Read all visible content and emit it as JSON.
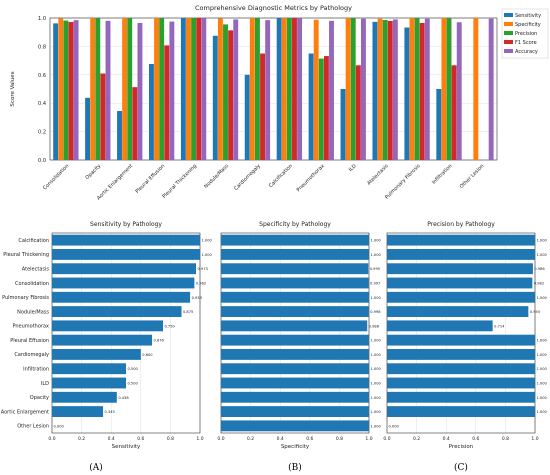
{
  "colors": {
    "sensitivity": "#1f77b4",
    "specificity": "#ff7f0e",
    "precision": "#2ca02c",
    "f1": "#d62728",
    "accuracy": "#9467bd",
    "grid": "#dddddd",
    "axis": "#333333"
  },
  "panel_letters": [
    "(A)",
    "(B)",
    "(C)"
  ],
  "chart_data": [
    {
      "type": "bar",
      "title": "Comprehensive Diagnostic Metrics by Pathology",
      "xlabel": "",
      "ylabel": "Score Values",
      "ylim": [
        0,
        1.0
      ],
      "yticks": [
        "0.0",
        "0.2",
        "0.4",
        "0.6",
        "0.8",
        "1.0"
      ],
      "grid": true,
      "legend_position": "top-right",
      "categories": [
        "Consolidation",
        "Opacity",
        "Aortic Enlargement",
        "Pleural Effusion",
        "Pleural Thickening",
        "Nodule/Mass",
        "Cardiomegaly",
        "Calcification",
        "Pneumothorax",
        "ILD",
        "Atelectasis",
        "Pulmonary Fibrosis",
        "Infiltration",
        "Other Lesion"
      ],
      "series": [
        {
          "name": "Sensitivity",
          "color_key": "sensitivity",
          "values": [
            0.962,
            0.438,
            0.345,
            0.676,
            1.0,
            0.875,
            0.6,
            1.0,
            0.75,
            0.5,
            0.973,
            0.933,
            0.5,
            0.0
          ]
        },
        {
          "name": "Specificity",
          "color_key": "specificity",
          "values": [
            0.997,
            1.0,
            1.0,
            1.0,
            1.0,
            0.998,
            1.0,
            1.0,
            0.988,
            1.0,
            0.995,
            1.0,
            1.0,
            1.0
          ]
        },
        {
          "name": "Precision",
          "color_key": "precision",
          "values": [
            0.982,
            1.0,
            1.0,
            1.0,
            1.0,
            0.955,
            1.0,
            1.0,
            0.714,
            1.0,
            0.986,
            1.0,
            1.0,
            0.0
          ]
        },
        {
          "name": "F1 Score",
          "color_key": "f1",
          "values": [
            0.972,
            0.609,
            0.513,
            0.807,
            1.0,
            0.913,
            0.75,
            1.0,
            0.732,
            0.667,
            0.979,
            0.965,
            0.667,
            0.0
          ]
        },
        {
          "name": "Accuracy",
          "color_key": "accuracy",
          "values": [
            0.985,
            0.98,
            0.965,
            0.975,
            1.0,
            0.99,
            0.985,
            1.0,
            0.98,
            0.995,
            0.99,
            0.995,
            0.97,
            0.995
          ]
        }
      ]
    },
    {
      "type": "bar",
      "orientation": "horizontal",
      "title": "Sensitivity by Pathology",
      "xlabel": "Sensitivity",
      "xlim": [
        0,
        1.0
      ],
      "xticks": [
        "0.0",
        "0.2",
        "0.4",
        "0.6",
        "0.8",
        "1.0"
      ],
      "grid": true,
      "color_key": "sensitivity",
      "categories": [
        "Calcification",
        "Pleural Thickening",
        "Atelectasis",
        "Consolidation",
        "Pulmonary Fibrosis",
        "Nodule/Mass",
        "Pneumothorax",
        "Pleural Effusion",
        "Cardiomegaly",
        "Infiltration",
        "ILD",
        "Opacity",
        "Aortic Enlargement",
        "Other Lesion"
      ],
      "values": [
        1.0,
        1.0,
        0.973,
        0.962,
        0.933,
        0.875,
        0.75,
        0.676,
        0.6,
        0.5,
        0.5,
        0.438,
        0.345,
        0.0
      ],
      "labels": [
        "1.000",
        "1.000",
        "0.973",
        "0.962",
        "0.933",
        "0.875",
        "0.750",
        "0.676",
        "0.600",
        "0.500",
        "0.500",
        "0.438",
        "0.345",
        "0.000"
      ]
    },
    {
      "type": "bar",
      "orientation": "horizontal",
      "title": "Specificity by Pathology",
      "xlabel": "Specificity",
      "xlim": [
        0,
        1.0
      ],
      "xticks": [
        "0.0",
        "0.2",
        "0.4",
        "0.6",
        "0.8",
        "1.0"
      ],
      "grid": true,
      "color_key": "sensitivity",
      "values": [
        1.0,
        1.0,
        0.995,
        0.997,
        1.0,
        0.998,
        0.988,
        1.0,
        1.0,
        1.0,
        1.0,
        1.0,
        1.0,
        1.0
      ],
      "labels": [
        "1.000",
        "1.000",
        "0.995",
        "0.997",
        "1.000",
        "0.998",
        "0.988",
        "1.000",
        "1.000",
        "1.000",
        "1.000",
        "1.000",
        "1.000",
        "1.000"
      ]
    },
    {
      "type": "bar",
      "orientation": "horizontal",
      "title": "Precision by Pathology",
      "xlabel": "Precision",
      "xlim": [
        0,
        1.0
      ],
      "xticks": [
        "0.0",
        "0.2",
        "0.4",
        "0.6",
        "0.8",
        "1.0"
      ],
      "grid": true,
      "color_key": "sensitivity",
      "values": [
        1.0,
        1.0,
        0.986,
        0.982,
        1.0,
        0.955,
        0.714,
        1.0,
        1.0,
        1.0,
        1.0,
        1.0,
        1.0,
        0.0
      ],
      "labels": [
        "1.000",
        "1.000",
        "0.986",
        "0.982",
        "1.000",
        "0.955",
        "0.714",
        "1.000",
        "1.000",
        "1.000",
        "1.000",
        "1.000",
        "1.000",
        "0.000"
      ]
    }
  ]
}
